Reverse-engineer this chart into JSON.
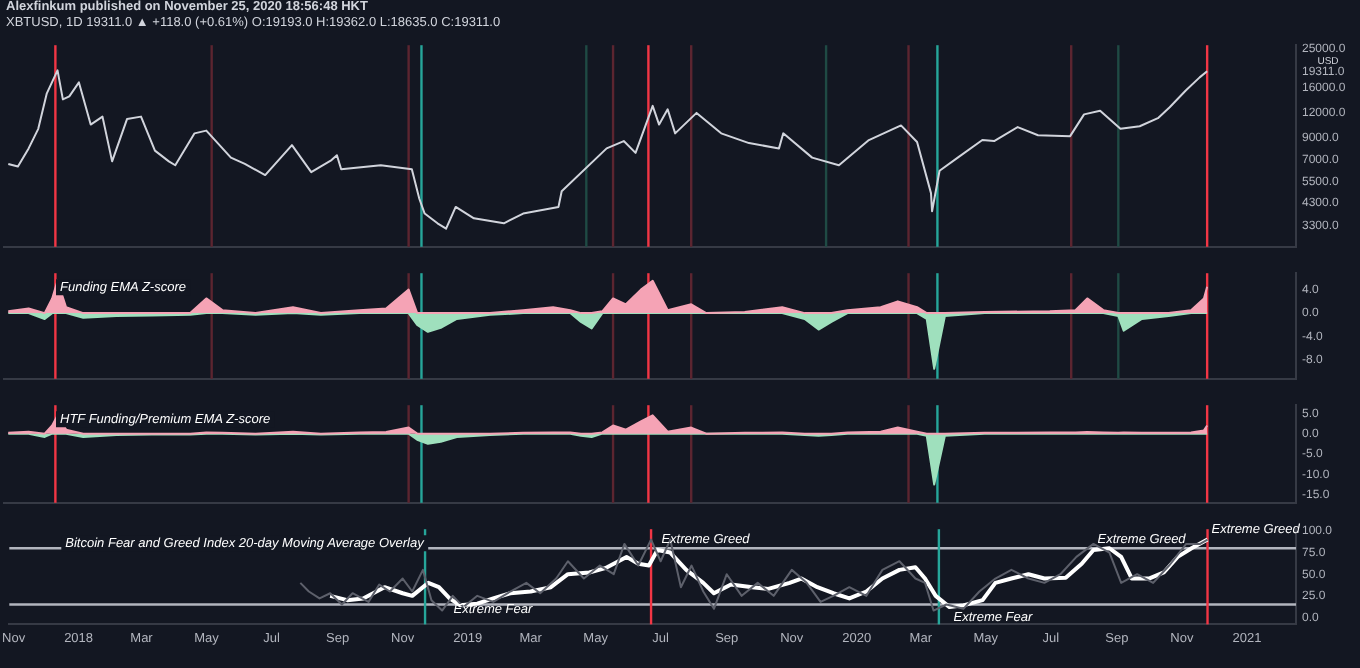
{
  "chart_data": [
    {
      "type": "line",
      "title": "Alexfinkum published on November 25, 2020 18:56:48 HKT",
      "subtitle": "XBTUSD, 1D  19311.0 ▲ +118.0 (+0.61%) O:19193.0 H:19362.0 L:18635.0 C:19311.0",
      "ylabel": "USD",
      "log": true,
      "marker": "none",
      "tick_labels": "y",
      "xlim": [
        "2017-10-28",
        "2021-02-16"
      ],
      "ylim": [
        2600,
        26000
      ],
      "yticks": [
        {
          "value": 25000,
          "label": "25000.0"
        },
        {
          "value": 19311,
          "label": "19311.0"
        },
        {
          "value": 16000,
          "label": "16000.0"
        },
        {
          "value": 12000,
          "label": "12000.0"
        },
        {
          "value": 9000,
          "label": "9000.0"
        },
        {
          "value": 7000,
          "label": "7000.0"
        },
        {
          "value": 5500,
          "label": "5500.0"
        },
        {
          "value": 4300,
          "label": "4300.0"
        },
        {
          "value": 3300,
          "label": "3300.0"
        }
      ],
      "series": [
        {
          "color": "#d1d4dc",
          "x": [
            "2017-11-01",
            "2017-11-10",
            "2017-11-20",
            "2017-11-29",
            "2017-12-07",
            "2017-12-17",
            "2017-12-22",
            "2017-12-28",
            "2018-01-06",
            "2018-01-17",
            "2018-01-28",
            "2018-02-06",
            "2018-02-20",
            "2018-03-05",
            "2018-03-18",
            "2018-03-31",
            "2018-04-06",
            "2018-04-24",
            "2018-05-05",
            "2018-05-28",
            "2018-06-10",
            "2018-06-29",
            "2018-07-24",
            "2018-08-11",
            "2018-08-30",
            "2018-09-04",
            "2018-09-08",
            "2018-10-15",
            "2018-11-13",
            "2018-11-20",
            "2018-11-25",
            "2018-12-07",
            "2018-12-15",
            "2018-12-24",
            "2019-01-10",
            "2019-02-07",
            "2019-02-25",
            "2019-03-30",
            "2019-04-02",
            "2019-05-14",
            "2019-05-30",
            "2019-06-10",
            "2019-06-26",
            "2019-07-02",
            "2019-07-10",
            "2019-07-17",
            "2019-08-06",
            "2019-08-29",
            "2019-09-24",
            "2019-10-22",
            "2019-10-26",
            "2019-11-22",
            "2019-12-17",
            "2020-01-14",
            "2020-02-13",
            "2020-02-28",
            "2020-03-12",
            "2020-03-13",
            "2020-03-20",
            "2020-04-06",
            "2020-04-29",
            "2020-05-10",
            "2020-06-01",
            "2020-06-20",
            "2020-07-20",
            "2020-08-02",
            "2020-08-17",
            "2020-09-05",
            "2020-09-23",
            "2020-10-10",
            "2020-10-21",
            "2020-11-05",
            "2020-11-18",
            "2020-11-25"
          ],
          "values": [
            6700,
            6500,
            8000,
            10000,
            15000,
            19500,
            14000,
            14500,
            17000,
            10500,
            11500,
            6900,
            11200,
            11500,
            7800,
            6900,
            6600,
            9500,
            9800,
            7200,
            6700,
            5900,
            8300,
            6100,
            7000,
            7400,
            6300,
            6600,
            6300,
            4500,
            3800,
            3400,
            3200,
            4100,
            3600,
            3400,
            3800,
            4100,
            4900,
            8000,
            8700,
            7600,
            13000,
            10500,
            12500,
            9500,
            12000,
            9500,
            8500,
            8000,
            9500,
            7200,
            6600,
            8800,
            10400,
            8600,
            4800,
            3900,
            6200,
            7200,
            8800,
            8700,
            10200,
            9300,
            9200,
            11800,
            12300,
            10000,
            10300,
            11300,
            12800,
            15500,
            18000,
            19311
          ]
        }
      ],
      "ref_lines": [
        {
          "axis": "x",
          "value": "2017-12-15",
          "color": "#f23645"
        },
        {
          "axis": "x",
          "value": "2018-05-10",
          "color": "#5c2530"
        },
        {
          "axis": "x",
          "value": "2018-11-10",
          "color": "#5c2530"
        },
        {
          "axis": "x",
          "value": "2018-11-22",
          "color": "#26a69a"
        },
        {
          "axis": "x",
          "value": "2019-04-25",
          "color": "#1f4a44"
        },
        {
          "axis": "x",
          "value": "2019-05-20",
          "color": "#5c2530"
        },
        {
          "axis": "x",
          "value": "2019-06-22",
          "color": "#f23645"
        },
        {
          "axis": "x",
          "value": "2019-08-01",
          "color": "#5c2530"
        },
        {
          "axis": "x",
          "value": "2019-12-05",
          "color": "#1f4a44"
        },
        {
          "axis": "x",
          "value": "2020-02-20",
          "color": "#5c2530"
        },
        {
          "axis": "x",
          "value": "2020-03-18",
          "color": "#26a69a"
        },
        {
          "axis": "x",
          "value": "2020-07-21",
          "color": "#5c2530"
        },
        {
          "axis": "x",
          "value": "2020-09-03",
          "color": "#1f4a44"
        },
        {
          "axis": "x",
          "value": "2020-11-25",
          "color": "#f23645"
        }
      ]
    },
    {
      "type": "area",
      "title": "Funding EMA Z-score",
      "marker": "none",
      "tick_labels": "y",
      "xlim": [
        "2017-10-28",
        "2021-02-16"
      ],
      "ylim": [
        -11.2,
        6.8
      ],
      "yticks": [
        {
          "value": 4,
          "label": "4.0"
        },
        {
          "value": 0,
          "label": "0.0"
        },
        {
          "value": -4,
          "label": "-4.0"
        },
        {
          "value": -8,
          "label": "-8.0"
        }
      ],
      "x": [
        "2017-11-01",
        "2017-11-20",
        "2017-12-05",
        "2017-12-12",
        "2017-12-17",
        "2017-12-25",
        "2018-01-10",
        "2018-02-10",
        "2018-03-15",
        "2018-04-20",
        "2018-05-05",
        "2018-05-20",
        "2018-06-20",
        "2018-07-25",
        "2018-08-20",
        "2018-09-25",
        "2018-10-20",
        "2018-11-10",
        "2018-11-18",
        "2018-11-28",
        "2018-12-10",
        "2018-12-25",
        "2019-01-25",
        "2019-02-25",
        "2019-03-25",
        "2019-04-10",
        "2019-04-20",
        "2019-04-30",
        "2019-05-10",
        "2019-05-20",
        "2019-06-01",
        "2019-06-15",
        "2019-06-26",
        "2019-07-10",
        "2019-08-01",
        "2019-08-15",
        "2019-09-20",
        "2019-10-25",
        "2019-11-15",
        "2019-11-28",
        "2019-12-10",
        "2019-12-25",
        "2020-01-25",
        "2020-02-10",
        "2020-02-28",
        "2020-03-08",
        "2020-03-15",
        "2020-03-25",
        "2020-05-01",
        "2020-07-01",
        "2020-07-25",
        "2020-08-05",
        "2020-08-20",
        "2020-09-03",
        "2020-09-08",
        "2020-09-25",
        "2020-10-20",
        "2020-11-10",
        "2020-11-22",
        "2020-11-25"
      ],
      "series": [
        {
          "color": "#f5a3b5",
          "values": [
            0.3,
            0.8,
            0,
            2.5,
            5.5,
            1.0,
            0,
            0,
            0,
            0,
            2.5,
            0.5,
            0,
            1.0,
            0,
            0.5,
            0.8,
            4.0,
            0,
            0,
            0,
            0,
            0,
            0.5,
            1.0,
            0.5,
            0,
            0,
            0.3,
            2.5,
            1.5,
            4.0,
            5.5,
            0.5,
            1.5,
            0,
            0.2,
            1.0,
            0,
            0,
            0,
            0.5,
            1.0,
            2.0,
            1.0,
            0,
            0,
            0,
            0.2,
            0.3,
            0.5,
            2.5,
            0.5,
            0,
            0,
            0,
            0,
            0.5,
            2.5,
            4.5
          ]
        },
        {
          "color": "#9fe0bd",
          "values": [
            0,
            0,
            -1.0,
            0,
            0,
            0,
            -0.8,
            -0.5,
            -0.4,
            -0.3,
            0,
            0,
            -0.3,
            0,
            -0.3,
            0,
            0,
            0,
            -2.0,
            -3.2,
            -2.5,
            -1.0,
            -0.3,
            0,
            0,
            0,
            -1.5,
            -2.6,
            0,
            0,
            0,
            0,
            0,
            0,
            0,
            0,
            0,
            0,
            -1.0,
            -2.8,
            -1.5,
            0,
            0,
            0,
            0,
            -1.0,
            -9.5,
            -0.5,
            0,
            0,
            0,
            0,
            0,
            -0.5,
            -3.0,
            -1.0,
            -0.5,
            0,
            0,
            0
          ]
        }
      ],
      "ref_lines": [
        {
          "axis": "x",
          "value": "2017-12-15",
          "color": "#f23645"
        },
        {
          "axis": "x",
          "value": "2018-05-10",
          "color": "#5c2530"
        },
        {
          "axis": "x",
          "value": "2018-11-10",
          "color": "#5c2530"
        },
        {
          "axis": "x",
          "value": "2018-11-22",
          "color": "#26a69a"
        },
        {
          "axis": "x",
          "value": "2019-05-20",
          "color": "#5c2530"
        },
        {
          "axis": "x",
          "value": "2019-06-22",
          "color": "#f23645"
        },
        {
          "axis": "x",
          "value": "2019-08-01",
          "color": "#5c2530"
        },
        {
          "axis": "x",
          "value": "2020-02-20",
          "color": "#5c2530"
        },
        {
          "axis": "x",
          "value": "2020-03-18",
          "color": "#26a69a"
        },
        {
          "axis": "x",
          "value": "2020-07-21",
          "color": "#5c2530"
        },
        {
          "axis": "x",
          "value": "2020-09-03",
          "color": "#1f4a44"
        },
        {
          "axis": "x",
          "value": "2020-11-25",
          "color": "#f23645"
        }
      ]
    },
    {
      "type": "area",
      "title": "HTF Funding/Premium EMA Z-score",
      "marker": "none",
      "tick_labels": "y",
      "xlim": [
        "2017-10-28",
        "2021-02-16"
      ],
      "ylim": [
        -17,
        7
      ],
      "yticks": [
        {
          "value": 5,
          "label": "5.0"
        },
        {
          "value": 0,
          "label": "0.0"
        },
        {
          "value": -5,
          "label": "-5.0"
        },
        {
          "value": -10,
          "label": "-10.0"
        },
        {
          "value": -15,
          "label": "-15.0"
        }
      ],
      "x": [
        "2017-11-01",
        "2017-11-20",
        "2017-12-05",
        "2017-12-12",
        "2017-12-17",
        "2017-12-25",
        "2018-01-10",
        "2018-02-10",
        "2018-03-15",
        "2018-04-20",
        "2018-05-05",
        "2018-05-20",
        "2018-06-20",
        "2018-07-25",
        "2018-08-20",
        "2018-09-25",
        "2018-10-20",
        "2018-11-10",
        "2018-11-18",
        "2018-11-28",
        "2018-12-10",
        "2018-12-25",
        "2019-01-25",
        "2019-02-25",
        "2019-03-25",
        "2019-04-10",
        "2019-04-20",
        "2019-04-30",
        "2019-05-10",
        "2019-05-20",
        "2019-06-01",
        "2019-06-15",
        "2019-06-26",
        "2019-07-10",
        "2019-08-01",
        "2019-08-15",
        "2019-09-20",
        "2019-10-25",
        "2019-11-15",
        "2019-11-28",
        "2019-12-10",
        "2019-12-25",
        "2020-01-25",
        "2020-02-10",
        "2020-02-28",
        "2020-03-08",
        "2020-03-15",
        "2020-03-25",
        "2020-05-01",
        "2020-07-01",
        "2020-07-25",
        "2020-08-05",
        "2020-08-20",
        "2020-09-03",
        "2020-09-08",
        "2020-09-25",
        "2020-10-20",
        "2020-11-10",
        "2020-11-22",
        "2020-11-25"
      ],
      "series": [
        {
          "color": "#f5a3b5",
          "values": [
            0.2,
            0.5,
            0,
            2,
            4.5,
            1,
            0,
            0,
            0,
            0,
            0.3,
            0.2,
            0,
            0.5,
            0,
            0.3,
            0.4,
            1.5,
            0,
            0,
            0,
            0,
            0,
            0.2,
            0.3,
            0.3,
            0,
            0,
            0.3,
            2,
            1,
            3,
            4.5,
            0.5,
            1.5,
            0,
            0.2,
            0.3,
            0,
            0,
            0,
            0.3,
            0.5,
            1.5,
            0.5,
            0,
            0,
            0,
            0.2,
            0.3,
            0.3,
            0.4,
            0.3,
            0.2,
            0.3,
            0.2,
            0.2,
            0.3,
            0.8,
            2
          ]
        },
        {
          "color": "#9fe0bd",
          "values": [
            0,
            0,
            -0.8,
            0,
            0,
            0,
            -0.8,
            -0.3,
            -0.2,
            -0.2,
            0,
            0,
            -0.2,
            0,
            -0.2,
            0,
            0,
            0,
            -1.5,
            -2.5,
            -2,
            -0.8,
            -0.3,
            0,
            0,
            0,
            -0.5,
            -0.8,
            0,
            0,
            0,
            0,
            0,
            0,
            0,
            0,
            0,
            0,
            -0.3,
            -0.5,
            -0.3,
            0,
            0,
            0,
            0,
            -0.5,
            -12.5,
            -0.5,
            0,
            0,
            0,
            0,
            0,
            0,
            0,
            0,
            0,
            0,
            0,
            0
          ]
        }
      ],
      "ref_lines": [
        {
          "axis": "x",
          "value": "2017-12-15",
          "color": "#f23645"
        },
        {
          "axis": "x",
          "value": "2018-11-10",
          "color": "#5c2530"
        },
        {
          "axis": "x",
          "value": "2018-11-22",
          "color": "#26a69a"
        },
        {
          "axis": "x",
          "value": "2019-05-20",
          "color": "#5c2530"
        },
        {
          "axis": "x",
          "value": "2019-06-22",
          "color": "#f23645"
        },
        {
          "axis": "x",
          "value": "2019-08-01",
          "color": "#5c2530"
        },
        {
          "axis": "x",
          "value": "2020-02-20",
          "color": "#5c2530"
        },
        {
          "axis": "x",
          "value": "2020-03-18",
          "color": "#26a69a"
        },
        {
          "axis": "x",
          "value": "2020-11-25",
          "color": "#f23645"
        }
      ]
    },
    {
      "type": "line",
      "title": "Bitcoin Fear and Greed Index 20-day Moving Average Overlay",
      "marker": "none",
      "xlim": [
        "2017-10-28",
        "2021-02-16"
      ],
      "ylim": [
        -8,
        102
      ],
      "xticks": [
        {
          "value": "2017-11-01",
          "label": "Nov"
        },
        {
          "value": "2018-01-01",
          "label": "2018"
        },
        {
          "value": "2018-03-01",
          "label": "Mar"
        },
        {
          "value": "2018-05-01",
          "label": "May"
        },
        {
          "value": "2018-07-01",
          "label": "Jul"
        },
        {
          "value": "2018-09-01",
          "label": "Sep"
        },
        {
          "value": "2018-11-01",
          "label": "Nov"
        },
        {
          "value": "2019-01-01",
          "label": "2019"
        },
        {
          "value": "2019-03-01",
          "label": "Mar"
        },
        {
          "value": "2019-05-01",
          "label": "May"
        },
        {
          "value": "2019-07-01",
          "label": "Jul"
        },
        {
          "value": "2019-09-01",
          "label": "Sep"
        },
        {
          "value": "2019-11-01",
          "label": "Nov"
        },
        {
          "value": "2020-01-01",
          "label": "2020"
        },
        {
          "value": "2020-03-01",
          "label": "Mar"
        },
        {
          "value": "2020-05-01",
          "label": "May"
        },
        {
          "value": "2020-07-01",
          "label": "Jul"
        },
        {
          "value": "2020-09-01",
          "label": "Sep"
        },
        {
          "value": "2020-11-01",
          "label": "Nov"
        },
        {
          "value": "2021-01-01",
          "label": "2021"
        }
      ],
      "yticks": [
        {
          "value": 100,
          "label": "100.0"
        },
        {
          "value": 75,
          "label": "75.0"
        },
        {
          "value": 50,
          "label": "50.0"
        },
        {
          "value": 25,
          "label": "25.0"
        },
        {
          "value": 0,
          "label": "0.0"
        }
      ],
      "series": [
        {
          "color": "#5d606b",
          "x": [
            "2018-07-28",
            "2018-08-05",
            "2018-08-15",
            "2018-08-25",
            "2018-09-05",
            "2018-09-15",
            "2018-09-30",
            "2018-10-10",
            "2018-10-20",
            "2018-11-01",
            "2018-11-10",
            "2018-11-20",
            "2018-11-28",
            "2018-12-08",
            "2018-12-18",
            "2018-12-28",
            "2019-01-10",
            "2019-01-25",
            "2019-02-10",
            "2019-02-25",
            "2019-03-10",
            "2019-03-25",
            "2019-04-05",
            "2019-04-20",
            "2019-05-05",
            "2019-05-18",
            "2019-05-28",
            "2019-06-10",
            "2019-06-22",
            "2019-07-01",
            "2019-07-10",
            "2019-07-20",
            "2019-07-30",
            "2019-08-10",
            "2019-08-20",
            "2019-09-01",
            "2019-09-15",
            "2019-09-30",
            "2019-10-15",
            "2019-11-01",
            "2019-11-15",
            "2019-11-28",
            "2019-12-10",
            "2019-12-25",
            "2020-01-10",
            "2020-01-25",
            "2020-02-10",
            "2020-02-25",
            "2020-03-05",
            "2020-03-13",
            "2020-03-25",
            "2020-04-10",
            "2020-04-25",
            "2020-05-10",
            "2020-05-25",
            "2020-06-10",
            "2020-06-25",
            "2020-07-10",
            "2020-07-25",
            "2020-08-10",
            "2020-08-25",
            "2020-09-05",
            "2020-09-20",
            "2020-10-05",
            "2020-10-20",
            "2020-11-05",
            "2020-11-18",
            "2020-11-25"
          ],
          "values": [
            40,
            30,
            22,
            28,
            15,
            28,
            18,
            38,
            30,
            45,
            30,
            55,
            20,
            8,
            25,
            12,
            25,
            18,
            30,
            40,
            28,
            45,
            65,
            45,
            60,
            50,
            85,
            60,
            90,
            65,
            90,
            35,
            60,
            30,
            10,
            50,
            25,
            40,
            25,
            55,
            40,
            18,
            25,
            35,
            25,
            55,
            65,
            45,
            40,
            8,
            15,
            10,
            30,
            45,
            55,
            45,
            40,
            50,
            70,
            85,
            75,
            40,
            50,
            40,
            60,
            85,
            85,
            90
          ]
        },
        {
          "color": "#ffffff",
          "x": [
            "2018-08-25",
            "2018-09-10",
            "2018-09-25",
            "2018-10-15",
            "2018-11-01",
            "2018-11-10",
            "2018-11-25",
            "2018-12-05",
            "2018-12-15",
            "2018-12-25",
            "2019-01-10",
            "2019-01-25",
            "2019-02-10",
            "2019-03-01",
            "2019-03-20",
            "2019-04-05",
            "2019-04-25",
            "2019-05-10",
            "2019-05-30",
            "2019-06-10",
            "2019-06-20",
            "2019-06-28",
            "2019-07-10",
            "2019-07-25",
            "2019-08-10",
            "2019-08-20",
            "2019-09-05",
            "2019-09-25",
            "2019-10-10",
            "2019-10-30",
            "2019-11-10",
            "2019-11-25",
            "2019-12-10",
            "2019-12-25",
            "2020-01-10",
            "2020-01-25",
            "2020-02-10",
            "2020-02-25",
            "2020-03-05",
            "2020-03-15",
            "2020-03-28",
            "2020-04-10",
            "2020-04-28",
            "2020-05-10",
            "2020-05-25",
            "2020-06-10",
            "2020-06-25",
            "2020-07-15",
            "2020-07-30",
            "2020-08-10",
            "2020-08-25",
            "2020-09-05",
            "2020-09-15",
            "2020-10-01",
            "2020-10-15",
            "2020-10-28",
            "2020-11-10",
            "2020-11-25"
          ],
          "values": [
            25,
            20,
            22,
            35,
            28,
            25,
            40,
            35,
            22,
            14,
            16,
            22,
            28,
            30,
            35,
            50,
            52,
            57,
            70,
            62,
            60,
            78,
            75,
            55,
            40,
            28,
            38,
            35,
            33,
            40,
            45,
            35,
            28,
            22,
            30,
            45,
            55,
            58,
            45,
            25,
            12,
            14,
            20,
            40,
            45,
            50,
            45,
            46,
            62,
            78,
            80,
            70,
            45,
            45,
            52,
            70,
            80,
            90
          ]
        }
      ],
      "ref_lines": [
        {
          "axis": "y",
          "value": 80,
          "color": "#b2b5be"
        },
        {
          "axis": "y",
          "value": 15,
          "color": "#b2b5be"
        },
        {
          "axis": "x",
          "value": "2018-11-22",
          "color": "#26a69a"
        },
        {
          "axis": "x",
          "value": "2019-06-22",
          "color": "#f23645"
        },
        {
          "axis": "x",
          "value": "2020-03-18",
          "color": "#26a69a"
        },
        {
          "axis": "x",
          "value": "2020-11-25",
          "color": "#f23645"
        }
      ],
      "annotations": [
        {
          "text": "Extreme Fear",
          "x": "2018-12-15",
          "y": 22
        },
        {
          "text": "Extreme Greed",
          "x": "2019-06-28",
          "y": 78
        },
        {
          "text": "Extreme Fear",
          "x": "2020-03-28",
          "y": 12
        },
        {
          "text": "Extreme Greed",
          "x": "2020-08-10",
          "y": 78
        },
        {
          "text": "Extreme Greed",
          "x": "2020-11-25",
          "y": 90
        }
      ]
    }
  ]
}
